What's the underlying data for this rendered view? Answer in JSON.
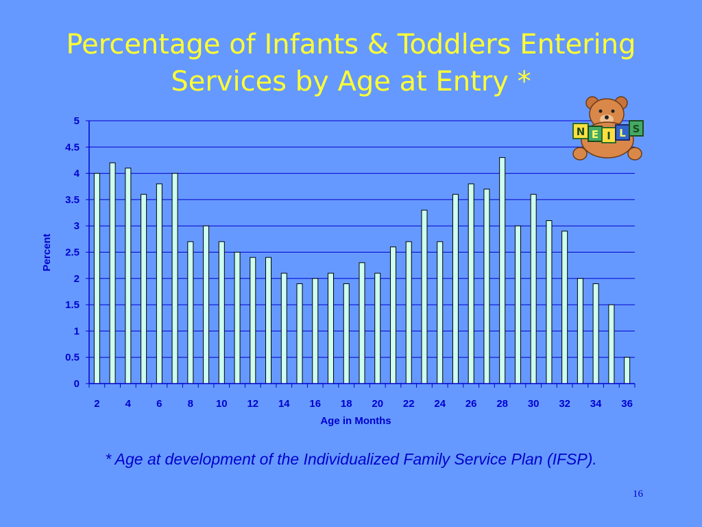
{
  "slide": {
    "title_line1": "Percentage of Infants & Toddlers Entering",
    "title_line2": "Services by Age at Entry *",
    "footnote": "* Age at development of the Individualized Family Service Plan (IFSP).",
    "slide_number": "16",
    "logo_letters": [
      "N",
      "E",
      "I",
      "L",
      "S"
    ]
  },
  "colors": {
    "background": "#6699FF",
    "title": "#FFFF33",
    "axis_text": "#0000CC",
    "gridline": "#0000CC",
    "bar_fill": "#CCFFEE",
    "bar_stroke": "#000000"
  },
  "chart_data": {
    "type": "bar",
    "xlabel": "Age in Months",
    "ylabel": "Percent",
    "ylim": [
      0,
      5
    ],
    "yticks": [
      "0",
      "0.5",
      "1",
      "1.5",
      "2",
      "2.5",
      "3",
      "3.5",
      "4",
      "4.5",
      "5"
    ],
    "grid": true,
    "categories": [
      "2",
      "3",
      "4",
      "5",
      "6",
      "7",
      "8",
      "9",
      "10",
      "11",
      "12",
      "13",
      "14",
      "15",
      "16",
      "17",
      "18",
      "19",
      "20",
      "21",
      "22",
      "23",
      "24",
      "25",
      "26",
      "27",
      "28",
      "29",
      "30",
      "31",
      "32",
      "33",
      "34",
      "35",
      "36"
    ],
    "xtick_labels": [
      "2",
      "4",
      "6",
      "8",
      "10",
      "12",
      "14",
      "16",
      "18",
      "20",
      "22",
      "24",
      "26",
      "28",
      "30",
      "32",
      "34",
      "36"
    ],
    "values": [
      4.0,
      4.2,
      4.1,
      3.6,
      3.8,
      4.0,
      2.7,
      3.0,
      2.7,
      2.5,
      2.4,
      2.4,
      2.1,
      1.9,
      2.0,
      2.1,
      1.9,
      2.3,
      2.1,
      2.6,
      2.7,
      3.3,
      2.7,
      3.6,
      3.8,
      3.7,
      4.3,
      3.0,
      3.6,
      3.1,
      2.9,
      2.0,
      1.9,
      1.5,
      0.5
    ]
  }
}
